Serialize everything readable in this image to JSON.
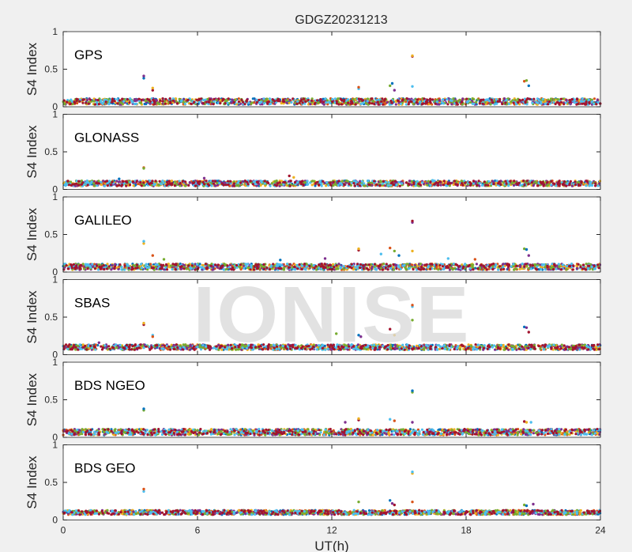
{
  "figure": {
    "title": "GDGZ20231213",
    "xlabel": "UT(h)",
    "ylabel": "S4 Index",
    "watermark": "IONISE"
  },
  "colors": {
    "background": "#f0f0f0",
    "axes_face": "#ffffff",
    "axes_edge": "#262626",
    "series": [
      "#0072BD",
      "#D95319",
      "#EDB120",
      "#7E2F8E",
      "#77AC30",
      "#4DBEEE",
      "#A2142F"
    ]
  },
  "chart_data": [
    {
      "type": "scatter",
      "panel_label": "GPS",
      "xlim": [
        0,
        24
      ],
      "ylim": [
        0,
        1
      ],
      "x_ticks": [
        0,
        6,
        12,
        18,
        24
      ],
      "y_ticks": [
        "0",
        "0.5",
        "1"
      ],
      "baseline": 0.07,
      "noise": 0.04,
      "outliers": [
        [
          3.6,
          0.38
        ],
        [
          3.6,
          0.41
        ],
        [
          4.0,
          0.22
        ],
        [
          4.0,
          0.25
        ],
        [
          13.2,
          0.24
        ],
        [
          13.2,
          0.26
        ],
        [
          14.6,
          0.28
        ],
        [
          14.7,
          0.31
        ],
        [
          14.8,
          0.22
        ],
        [
          15.6,
          0.67
        ],
        [
          15.6,
          0.68
        ],
        [
          15.6,
          0.27
        ],
        [
          20.6,
          0.34
        ],
        [
          20.7,
          0.35
        ],
        [
          20.8,
          0.28
        ]
      ]
    },
    {
      "type": "scatter",
      "panel_label": "GLONASS",
      "xlim": [
        0,
        24
      ],
      "ylim": [
        0,
        1
      ],
      "x_ticks": [
        0,
        6,
        12,
        18,
        24
      ],
      "y_ticks": [
        "0",
        "0.5",
        "1"
      ],
      "baseline": 0.08,
      "noise": 0.035,
      "outliers": [
        [
          3.6,
          0.29
        ],
        [
          3.6,
          0.28
        ],
        [
          2.5,
          0.14
        ],
        [
          6.3,
          0.15
        ],
        [
          10.1,
          0.18
        ],
        [
          10.3,
          0.16
        ],
        [
          16.5,
          0.12
        ]
      ]
    },
    {
      "type": "scatter",
      "panel_label": "GALILEO",
      "xlim": [
        0,
        24
      ],
      "ylim": [
        0,
        1
      ],
      "x_ticks": [
        0,
        6,
        12,
        18,
        24
      ],
      "y_ticks": [
        "0",
        "0.5",
        "1"
      ],
      "baseline": 0.07,
      "noise": 0.04,
      "outliers": [
        [
          3.6,
          0.38
        ],
        [
          3.6,
          0.41
        ],
        [
          4.0,
          0.22
        ],
        [
          4.5,
          0.17
        ],
        [
          9.7,
          0.16
        ],
        [
          11.7,
          0.18
        ],
        [
          13.2,
          0.29
        ],
        [
          13.2,
          0.31
        ],
        [
          14.2,
          0.24
        ],
        [
          14.6,
          0.32
        ],
        [
          14.8,
          0.28
        ],
        [
          15.0,
          0.22
        ],
        [
          15.6,
          0.66
        ],
        [
          15.6,
          0.68
        ],
        [
          15.6,
          0.28
        ],
        [
          17.2,
          0.18
        ],
        [
          18.4,
          0.17
        ],
        [
          20.6,
          0.31
        ],
        [
          20.7,
          0.3
        ],
        [
          20.8,
          0.22
        ]
      ]
    },
    {
      "type": "scatter",
      "panel_label": "SBAS",
      "xlim": [
        0,
        24
      ],
      "ylim": [
        0,
        1
      ],
      "x_ticks": [
        0,
        6,
        12,
        18,
        24
      ],
      "y_ticks": [
        "0",
        "0.5",
        "1"
      ],
      "baseline": 0.1,
      "noise": 0.035,
      "outliers": [
        [
          1.6,
          0.16
        ],
        [
          3.6,
          0.4
        ],
        [
          3.6,
          0.42
        ],
        [
          4.0,
          0.26
        ],
        [
          4.0,
          0.24
        ],
        [
          12.2,
          0.28
        ],
        [
          13.2,
          0.26
        ],
        [
          13.3,
          0.24
        ],
        [
          14.6,
          0.34
        ],
        [
          14.8,
          0.26
        ],
        [
          15.6,
          0.64
        ],
        [
          15.6,
          0.66
        ],
        [
          15.6,
          0.46
        ],
        [
          20.6,
          0.37
        ],
        [
          20.7,
          0.36
        ],
        [
          20.8,
          0.3
        ]
      ]
    },
    {
      "type": "scatter",
      "panel_label": "BDS NGEO",
      "xlim": [
        0,
        24
      ],
      "ylim": [
        0,
        1
      ],
      "x_ticks": [
        0,
        6,
        12,
        18,
        24
      ],
      "y_ticks": [
        "0",
        "0.5",
        "1"
      ],
      "baseline": 0.07,
      "noise": 0.04,
      "outliers": [
        [
          3.6,
          0.36
        ],
        [
          3.6,
          0.38
        ],
        [
          12.6,
          0.2
        ],
        [
          13.2,
          0.23
        ],
        [
          13.2,
          0.25
        ],
        [
          14.6,
          0.24
        ],
        [
          14.8,
          0.22
        ],
        [
          15.6,
          0.6
        ],
        [
          15.6,
          0.62
        ],
        [
          15.6,
          0.2
        ],
        [
          20.6,
          0.21
        ],
        [
          20.7,
          0.2
        ],
        [
          20.9,
          0.2
        ]
      ]
    },
    {
      "type": "scatter",
      "panel_label": "BDS GEO",
      "xlim": [
        0,
        24
      ],
      "ylim": [
        0,
        1
      ],
      "x_ticks": [
        0,
        6,
        12,
        18,
        24
      ],
      "y_ticks": [
        "0",
        "0.5",
        "1"
      ],
      "baseline": 0.1,
      "noise": 0.03,
      "outliers": [
        [
          3.6,
          0.38
        ],
        [
          3.6,
          0.41
        ],
        [
          13.2,
          0.24
        ],
        [
          14.6,
          0.26
        ],
        [
          14.7,
          0.22
        ],
        [
          14.8,
          0.2
        ],
        [
          15.6,
          0.62
        ],
        [
          15.6,
          0.64
        ],
        [
          15.6,
          0.24
        ],
        [
          20.6,
          0.2
        ],
        [
          20.7,
          0.19
        ],
        [
          21.0,
          0.21
        ]
      ]
    }
  ]
}
